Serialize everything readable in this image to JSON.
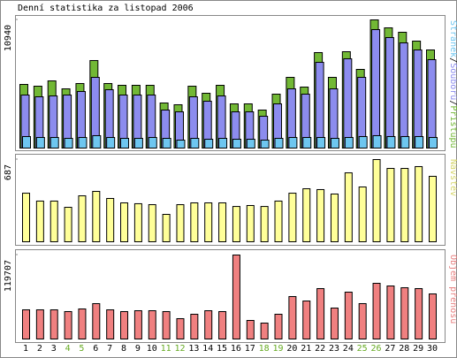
{
  "title": "Denní statistika za listopad 2006",
  "categories": [
    "1",
    "2",
    "3",
    "4",
    "5",
    "6",
    "7",
    "8",
    "9",
    "10",
    "11",
    "12",
    "13",
    "14",
    "15",
    "16",
    "17",
    "18",
    "19",
    "20",
    "21",
    "22",
    "23",
    "24",
    "25",
    "26",
    "27",
    "28",
    "29",
    "30"
  ],
  "category_colors": [
    "#000000",
    "#000000",
    "#000000",
    "#66aa22",
    "#66aa22",
    "#000000",
    "#000000",
    "#000000",
    "#000000",
    "#000000",
    "#66aa22",
    "#66aa22",
    "#000000",
    "#000000",
    "#000000",
    "#000000",
    "#000000",
    "#66aa22",
    "#66aa22",
    "#000000",
    "#000000",
    "#000000",
    "#000000",
    "#000000",
    "#66aa22",
    "#66aa22",
    "#000000",
    "#000000",
    "#000000",
    "#000000"
  ],
  "legend_separator": "/",
  "chart_data": [
    {
      "type": "bar",
      "ylim": [
        0,
        10940
      ],
      "yticks": [
        10940
      ],
      "series": [
        {
          "name": "Přístupů",
          "color": "#72b835",
          "values": [
            5432,
            5281,
            5734,
            5055,
            5508,
            7470,
            5508,
            5357,
            5357,
            5357,
            3848,
            3697,
            5281,
            4678,
            5357,
            3772,
            3772,
            3244,
            4602,
            6036,
            5206,
            8148,
            6036,
            8224,
            6715,
            10940,
            10261,
            9884,
            9129,
            8375
          ]
        },
        {
          "name": "Souborů",
          "color": "#8c8cee",
          "values": [
            4527,
            4376,
            4451,
            4527,
            4829,
            6036,
            4979,
            4527,
            4527,
            4527,
            3244,
            3093,
            4376,
            3999,
            4451,
            3093,
            3093,
            2716,
            3772,
            5055,
            4602,
            7318,
            5055,
            7620,
            6036,
            10110,
            9431,
            8978,
            8375,
            7545
          ]
        },
        {
          "name": "Stránek",
          "color": "#6ec6f0",
          "values": [
            981,
            905,
            905,
            830,
            905,
            1057,
            905,
            830,
            830,
            905,
            830,
            679,
            830,
            754,
            830,
            754,
            754,
            679,
            830,
            905,
            905,
            905,
            830,
            905,
            981,
            1057,
            981,
            981,
            981,
            905
          ]
        }
      ]
    },
    {
      "type": "bar",
      "ylim": [
        0,
        687
      ],
      "yticks": [
        687
      ],
      "series": [
        {
          "name": "Návštěv",
          "color": "#ffff99",
          "label_color": "#d6d66a",
          "values": [
            406,
            340,
            340,
            288,
            384,
            421,
            362,
            325,
            318,
            310,
            229,
            310,
            325,
            325,
            325,
            295,
            303,
            295,
            340,
            406,
            443,
            436,
            399,
            576,
            458,
            687,
            613,
            613,
            628,
            547
          ]
        }
      ]
    },
    {
      "type": "bar",
      "ylim": [
        0,
        119707
      ],
      "yticks": [
        119707
      ],
      "series": [
        {
          "name": "Objem přenosu",
          "color": "#f08080",
          "label_color": "#e88080",
          "values": [
            41582,
            41582,
            41582,
            39063,
            42843,
            50403,
            41582,
            39063,
            40322,
            40322,
            39063,
            28982,
            35282,
            40322,
            39063,
            119707,
            26462,
            22682,
            35282,
            60484,
            54183,
            71824,
            44103,
            66784,
            50403,
            79385,
            75605,
            73085,
            71824,
            64264
          ]
        }
      ]
    }
  ]
}
